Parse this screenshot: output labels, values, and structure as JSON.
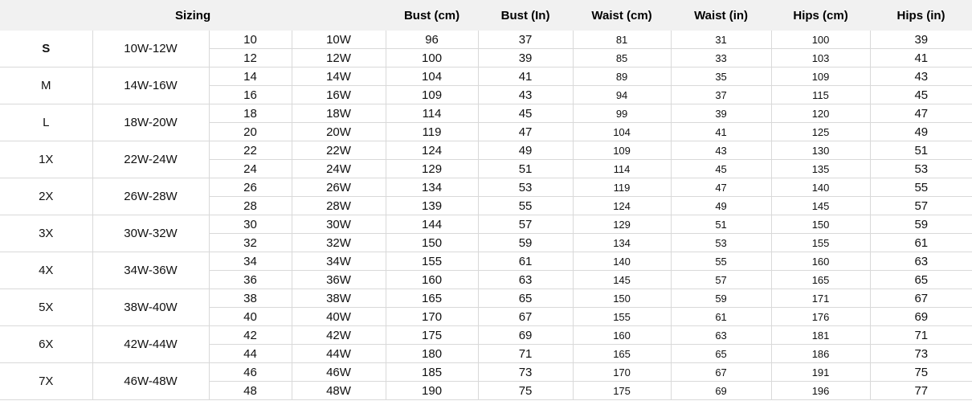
{
  "colors": {
    "header_bg": "#f1f1f1",
    "border": "#d9d9d9",
    "text": "#111111"
  },
  "chart_data": {
    "type": "table",
    "header": {
      "sizing_label": "Sizing",
      "columns": [
        "Bust (cm)",
        "Bust (In)",
        "Waist (cm)",
        "Waist (in)",
        "Hips (cm)",
        "Hips (in)"
      ]
    },
    "groups": [
      {
        "letter": "S",
        "range": "10W-12W",
        "rows": [
          {
            "num": "10",
            "w": "10W",
            "bust_cm": "96",
            "bust_in": "37",
            "waist_cm": "81",
            "waist_in": "31",
            "hips_cm": "100",
            "hips_in": "39"
          },
          {
            "num": "12",
            "w": "12W",
            "bust_cm": "100",
            "bust_in": "39",
            "waist_cm": "85",
            "waist_in": "33",
            "hips_cm": "103",
            "hips_in": "41"
          }
        ]
      },
      {
        "letter": "M",
        "range": "14W-16W",
        "rows": [
          {
            "num": "14",
            "w": "14W",
            "bust_cm": "104",
            "bust_in": "41",
            "waist_cm": "89",
            "waist_in": "35",
            "hips_cm": "109",
            "hips_in": "43"
          },
          {
            "num": "16",
            "w": "16W",
            "bust_cm": "109",
            "bust_in": "43",
            "waist_cm": "94",
            "waist_in": "37",
            "hips_cm": "115",
            "hips_in": "45"
          }
        ]
      },
      {
        "letter": "L",
        "range": "18W-20W",
        "rows": [
          {
            "num": "18",
            "w": "18W",
            "bust_cm": "114",
            "bust_in": "45",
            "waist_cm": "99",
            "waist_in": "39",
            "hips_cm": "120",
            "hips_in": "47"
          },
          {
            "num": "20",
            "w": "20W",
            "bust_cm": "119",
            "bust_in": "47",
            "waist_cm": "104",
            "waist_in": "41",
            "hips_cm": "125",
            "hips_in": "49"
          }
        ]
      },
      {
        "letter": "1X",
        "range": "22W-24W",
        "rows": [
          {
            "num": "22",
            "w": "22W",
            "bust_cm": "124",
            "bust_in": "49",
            "waist_cm": "109",
            "waist_in": "43",
            "hips_cm": "130",
            "hips_in": "51"
          },
          {
            "num": "24",
            "w": "24W",
            "bust_cm": "129",
            "bust_in": "51",
            "waist_cm": "114",
            "waist_in": "45",
            "hips_cm": "135",
            "hips_in": "53"
          }
        ]
      },
      {
        "letter": "2X",
        "range": "26W-28W",
        "rows": [
          {
            "num": "26",
            "w": "26W",
            "bust_cm": "134",
            "bust_in": "53",
            "waist_cm": "119",
            "waist_in": "47",
            "hips_cm": "140",
            "hips_in": "55"
          },
          {
            "num": "28",
            "w": "28W",
            "bust_cm": "139",
            "bust_in": "55",
            "waist_cm": "124",
            "waist_in": "49",
            "hips_cm": "145",
            "hips_in": "57"
          }
        ]
      },
      {
        "letter": "3X",
        "range": "30W-32W",
        "rows": [
          {
            "num": "30",
            "w": "30W",
            "bust_cm": "144",
            "bust_in": "57",
            "waist_cm": "129",
            "waist_in": "51",
            "hips_cm": "150",
            "hips_in": "59"
          },
          {
            "num": "32",
            "w": "32W",
            "bust_cm": "150",
            "bust_in": "59",
            "waist_cm": "134",
            "waist_in": "53",
            "hips_cm": "155",
            "hips_in": "61"
          }
        ]
      },
      {
        "letter": "4X",
        "range": "34W-36W",
        "rows": [
          {
            "num": "34",
            "w": "34W",
            "bust_cm": "155",
            "bust_in": "61",
            "waist_cm": "140",
            "waist_in": "55",
            "hips_cm": "160",
            "hips_in": "63"
          },
          {
            "num": "36",
            "w": "36W",
            "bust_cm": "160",
            "bust_in": "63",
            "waist_cm": "145",
            "waist_in": "57",
            "hips_cm": "165",
            "hips_in": "65"
          }
        ]
      },
      {
        "letter": "5X",
        "range": "38W-40W",
        "rows": [
          {
            "num": "38",
            "w": "38W",
            "bust_cm": "165",
            "bust_in": "65",
            "waist_cm": "150",
            "waist_in": "59",
            "hips_cm": "171",
            "hips_in": "67"
          },
          {
            "num": "40",
            "w": "40W",
            "bust_cm": "170",
            "bust_in": "67",
            "waist_cm": "155",
            "waist_in": "61",
            "hips_cm": "176",
            "hips_in": "69"
          }
        ]
      },
      {
        "letter": "6X",
        "range": "42W-44W",
        "rows": [
          {
            "num": "42",
            "w": "42W",
            "bust_cm": "175",
            "bust_in": "69",
            "waist_cm": "160",
            "waist_in": "63",
            "hips_cm": "181",
            "hips_in": "71"
          },
          {
            "num": "44",
            "w": "44W",
            "bust_cm": "180",
            "bust_in": "71",
            "waist_cm": "165",
            "waist_in": "65",
            "hips_cm": "186",
            "hips_in": "73"
          }
        ]
      },
      {
        "letter": "7X",
        "range": "46W-48W",
        "rows": [
          {
            "num": "46",
            "w": "46W",
            "bust_cm": "185",
            "bust_in": "73",
            "waist_cm": "170",
            "waist_in": "67",
            "hips_cm": "191",
            "hips_in": "75"
          },
          {
            "num": "48",
            "w": "48W",
            "bust_cm": "190",
            "bust_in": "75",
            "waist_cm": "175",
            "waist_in": "69",
            "hips_cm": "196",
            "hips_in": "77"
          }
        ]
      }
    ]
  }
}
